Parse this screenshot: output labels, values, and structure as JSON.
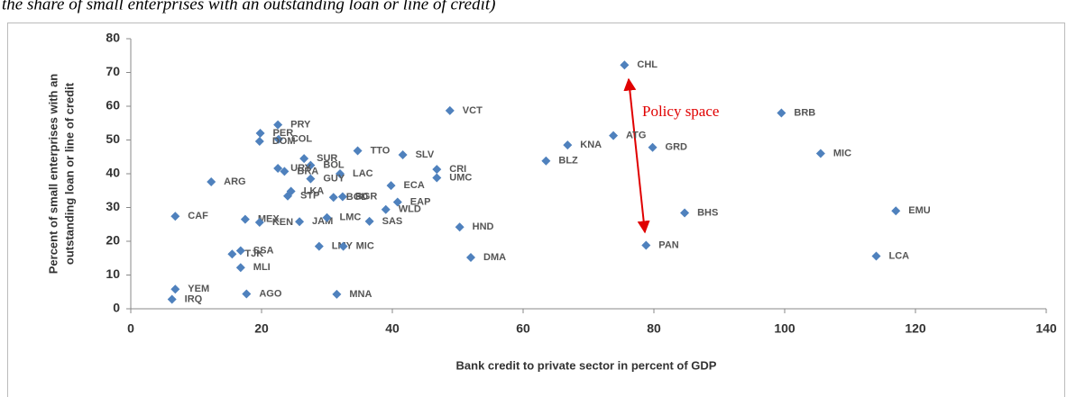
{
  "chart_data": {
    "type": "scatter",
    "title": "the share of small enterprises with an outstanding loan or line of credit)",
    "x_label": "Bank credit to private sector in percent of GDP",
    "y_label": [
      "Percent of small enterprises with an",
      "outstanding loan or line of credit"
    ],
    "annotation": "Policy space",
    "color": "#4f81bd",
    "xlim": [
      0,
      140
    ],
    "xticks": [
      0,
      20,
      40,
      60,
      80,
      100,
      120,
      140
    ],
    "ylim": [
      0,
      80
    ],
    "yticks": [
      0,
      10,
      20,
      30,
      40,
      50,
      60,
      70,
      80
    ],
    "labels": [
      "CHL",
      "VCT",
      "BRB",
      "PRY",
      "PER",
      "COL",
      "DOM",
      "ATG",
      "KNA",
      "GRD",
      "TTO",
      "SLV",
      "MIC",
      "BLZ",
      "SUR",
      "BOL",
      "URY",
      "CRI",
      "BRA",
      "LAC",
      "GUY",
      "ARG",
      "ECA",
      "UMC",
      "LKA",
      "STP",
      "BGD",
      "BGR",
      "EAP",
      "WLD",
      "CAF",
      "MEX",
      "KEN",
      "JAM",
      "LMC",
      "SAS",
      "HND",
      "BHS",
      "EMU",
      "PAN",
      "SSA",
      "TJK",
      "LMY",
      "MIC",
      "DMA",
      "LCA",
      "MLI",
      "YEM",
      "IRQ",
      "AGO",
      "MNA"
    ],
    "x": [
      75.5,
      48.8,
      99.5,
      22.5,
      19.8,
      22.6,
      19.7,
      73.8,
      66.8,
      79.8,
      34.7,
      41.6,
      105.5,
      63.5,
      26.5,
      27.5,
      22.5,
      46.8,
      23.5,
      32,
      27.5,
      12.3,
      39.8,
      46.8,
      24.5,
      24,
      31,
      32.4,
      40.8,
      39,
      6.8,
      17.5,
      19.7,
      25.8,
      30,
      36.5,
      50.3,
      84.7,
      117,
      78.8,
      16.8,
      15.5,
      28.8,
      32.5,
      52,
      114,
      16.8,
      6.8,
      6.3,
      17.7,
      31.5
    ],
    "y": [
      72.2,
      58.7,
      58,
      54.5,
      52,
      50.2,
      49.6,
      51.3,
      48.5,
      47.8,
      46.8,
      45.6,
      46,
      43.8,
      44.5,
      42.5,
      41.6,
      41.3,
      40.7,
      40,
      38.5,
      37.6,
      36.5,
      38.8,
      34.8,
      33.4,
      33,
      33.2,
      31.6,
      29.4,
      27.4,
      26.5,
      25.6,
      25.8,
      27,
      25.9,
      24.2,
      28.4,
      29,
      18.8,
      17.2,
      16.2,
      18.5,
      18.5,
      15.2,
      15.6,
      12.2,
      5.8,
      2.8,
      4.4,
      4.3
    ]
  }
}
